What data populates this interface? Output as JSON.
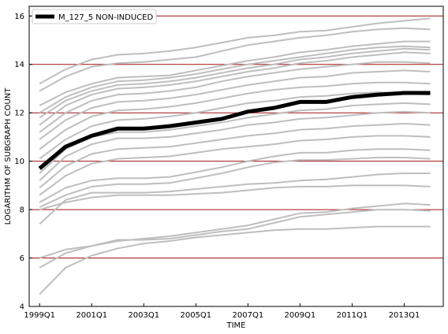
{
  "chart_data": {
    "type": "line",
    "title": "",
    "xlabel": "TIME",
    "ylabel": "LOGARITHM OF SUBGRAPH COUNT",
    "xlim": [
      1998.6,
      2014.5
    ],
    "ylim": [
      4,
      16.4
    ],
    "x_ticks": [
      {
        "value": 1999,
        "label": "1999Q1"
      },
      {
        "value": 2001,
        "label": "2001Q1"
      },
      {
        "value": 2003,
        "label": "2003Q1"
      },
      {
        "value": 2005,
        "label": "2005Q1"
      },
      {
        "value": 2007,
        "label": "2007Q1"
      },
      {
        "value": 2009,
        "label": "2009Q1"
      },
      {
        "value": 2011,
        "label": "2011Q1"
      },
      {
        "value": 2013,
        "label": "2013Q1"
      }
    ],
    "y_ticks": [
      4,
      6,
      8,
      10,
      12,
      14,
      16
    ],
    "grid": "horizontal",
    "legend_position": "top-left",
    "colors": {
      "highlight": "#000000",
      "background_series": "#bebebe",
      "grid": "#a01010"
    },
    "highlight_series": {
      "name": "M_127_5 NON-INDUCED",
      "x": [
        1999,
        2000,
        2001,
        2002,
        2003,
        2004,
        2005,
        2006,
        2007,
        2008,
        2009,
        2010,
        2011,
        2012,
        2013,
        2014
      ],
      "values": [
        9.7,
        10.6,
        11.05,
        11.35,
        11.35,
        11.45,
        11.6,
        11.75,
        12.05,
        12.2,
        12.45,
        12.45,
        12.65,
        12.75,
        12.82,
        12.82
      ]
    },
    "background_series": [
      {
        "x": [
          1999,
          2000,
          2001,
          2002,
          2003,
          2004,
          2005,
          2006,
          2007,
          2008,
          2009,
          2010,
          2011,
          2012,
          2013,
          2014
        ],
        "values": [
          13.2,
          13.8,
          14.2,
          14.4,
          14.45,
          14.55,
          14.7,
          14.9,
          15.1,
          15.2,
          15.35,
          15.4,
          15.55,
          15.7,
          15.8,
          15.9
        ]
      },
      {
        "x": [
          1999,
          2000,
          2001,
          2002,
          2003,
          2004,
          2005,
          2006,
          2007,
          2008,
          2009,
          2010,
          2011,
          2012,
          2013,
          2014
        ],
        "values": [
          12.9,
          13.5,
          13.9,
          14.05,
          14.1,
          14.2,
          14.3,
          14.55,
          14.8,
          14.95,
          15.1,
          15.2,
          15.35,
          15.45,
          15.5,
          15.45
        ]
      },
      {
        "x": [
          1999,
          2000,
          2001,
          2002,
          2003,
          2004,
          2005,
          2006,
          2007,
          2008,
          2009,
          2010,
          2011,
          2012,
          2013,
          2014
        ],
        "values": [
          12.3,
          12.85,
          13.2,
          13.45,
          13.5,
          13.55,
          13.75,
          13.95,
          14.15,
          14.3,
          14.5,
          14.6,
          14.75,
          14.85,
          14.95,
          14.95
        ]
      },
      {
        "x": [
          1999,
          2000,
          2001,
          2002,
          2003,
          2004,
          2005,
          2006,
          2007,
          2008,
          2009,
          2010,
          2011,
          2012,
          2013,
          2014
        ],
        "values": [
          12.0,
          12.65,
          13.05,
          13.3,
          13.35,
          13.45,
          13.6,
          13.8,
          14.0,
          14.15,
          14.3,
          14.45,
          14.6,
          14.7,
          14.75,
          14.7
        ]
      },
      {
        "x": [
          1999,
          2000,
          2001,
          2002,
          2003,
          2004,
          2005,
          2006,
          2007,
          2008,
          2009,
          2010,
          2011,
          2012,
          2013,
          2014
        ],
        "values": [
          11.8,
          12.5,
          12.9,
          13.15,
          13.2,
          13.3,
          13.45,
          13.65,
          13.85,
          14.0,
          14.2,
          14.3,
          14.45,
          14.55,
          14.65,
          14.6
        ]
      },
      {
        "x": [
          1999,
          2000,
          2001,
          2002,
          2003,
          2004,
          2005,
          2006,
          2007,
          2008,
          2009,
          2010,
          2011,
          2012,
          2013,
          2014
        ],
        "values": [
          11.5,
          12.3,
          12.75,
          13.0,
          13.05,
          13.15,
          13.3,
          13.5,
          13.7,
          13.85,
          14.05,
          14.15,
          14.3,
          14.4,
          14.5,
          14.45
        ]
      },
      {
        "x": [
          1999,
          2000,
          2001,
          2002,
          2003,
          2004,
          2005,
          2006,
          2007,
          2008,
          2009,
          2010,
          2011,
          2012,
          2013,
          2014
        ],
        "values": [
          11.2,
          12.0,
          12.5,
          12.75,
          12.8,
          12.9,
          13.05,
          13.3,
          13.5,
          13.65,
          13.8,
          13.9,
          14.0,
          14.1,
          14.1,
          14.05
        ]
      },
      {
        "x": [
          1999,
          2000,
          2001,
          2002,
          2003,
          2004,
          2005,
          2006,
          2007,
          2008,
          2009,
          2010,
          2011,
          2012,
          2013,
          2014
        ],
        "values": [
          10.9,
          11.7,
          12.2,
          12.45,
          12.5,
          12.6,
          12.75,
          12.95,
          13.15,
          13.3,
          13.45,
          13.5,
          13.65,
          13.7,
          13.75,
          13.7
        ]
      },
      {
        "x": [
          1999,
          2000,
          2001,
          2002,
          2003,
          2004,
          2005,
          2006,
          2007,
          2008,
          2009,
          2010,
          2011,
          2012,
          2013,
          2014
        ],
        "values": [
          10.5,
          11.3,
          11.85,
          12.1,
          12.15,
          12.25,
          12.4,
          12.6,
          12.8,
          12.95,
          13.05,
          13.1,
          13.2,
          13.25,
          13.25,
          13.2
        ]
      },
      {
        "x": [
          1999,
          2000,
          2001,
          2002,
          2003,
          2004,
          2005,
          2006,
          2007,
          2008,
          2009,
          2010,
          2011,
          2012,
          2013,
          2014
        ],
        "values": [
          10.1,
          10.9,
          11.45,
          11.7,
          11.75,
          11.85,
          12.0,
          12.2,
          12.4,
          12.5,
          12.65,
          12.7,
          12.8,
          12.85,
          12.8,
          12.75
        ]
      },
      {
        "x": [
          1999,
          2000,
          2001,
          2002,
          2003,
          2004,
          2005,
          2006,
          2007,
          2008,
          2009,
          2010,
          2011,
          2012,
          2013,
          2014
        ],
        "values": [
          9.5,
          10.5,
          11.0,
          11.2,
          11.2,
          11.3,
          11.45,
          11.6,
          11.8,
          11.95,
          12.1,
          12.15,
          12.3,
          12.35,
          12.4,
          12.35
        ]
      },
      {
        "x": [
          1999,
          2000,
          2001,
          2002,
          2003,
          2004,
          2005,
          2006,
          2007,
          2008,
          2009,
          2010,
          2011,
          2012,
          2013,
          2014
        ],
        "values": [
          9.2,
          10.2,
          10.7,
          10.95,
          10.95,
          11.0,
          11.15,
          11.3,
          11.5,
          11.6,
          11.75,
          11.8,
          11.9,
          12.0,
          12.05,
          12.0
        ]
      },
      {
        "x": [
          1999,
          2000,
          2001,
          2002,
          2003,
          2004,
          2005,
          2006,
          2007,
          2008,
          2009,
          2010,
          2011,
          2012,
          2013,
          2014
        ],
        "values": [
          8.9,
          9.8,
          10.3,
          10.5,
          10.55,
          10.6,
          10.75,
          10.9,
          11.05,
          11.15,
          11.3,
          11.35,
          11.45,
          11.5,
          11.55,
          11.5
        ]
      },
      {
        "x": [
          1999,
          2000,
          2001,
          2002,
          2003,
          2004,
          2005,
          2006,
          2007,
          2008,
          2009,
          2010,
          2011,
          2012,
          2013,
          2014
        ],
        "values": [
          8.6,
          9.4,
          9.9,
          10.1,
          10.15,
          10.2,
          10.35,
          10.5,
          10.6,
          10.7,
          10.85,
          10.9,
          11.0,
          11.05,
          11.05,
          11.0
        ]
      },
      {
        "x": [
          1999,
          2000,
          2001,
          2002,
          2003,
          2004,
          2005,
          2006,
          2007,
          2008,
          2009,
          2010,
          2011,
          2012,
          2013,
          2014
        ],
        "values": [
          8.3,
          8.9,
          9.2,
          9.3,
          9.3,
          9.35,
          9.55,
          9.75,
          10.0,
          10.2,
          10.35,
          10.35,
          10.45,
          10.5,
          10.5,
          10.45
        ]
      },
      {
        "x": [
          1999,
          2000,
          2001,
          2002,
          2003,
          2004,
          2005,
          2006,
          2007,
          2008,
          2009,
          2010,
          2011,
          2012,
          2013,
          2014
        ],
        "values": [
          8.1,
          8.6,
          8.95,
          9.05,
          9.05,
          9.1,
          9.3,
          9.5,
          9.75,
          9.95,
          10.05,
          10.05,
          10.1,
          10.15,
          10.15,
          10.1
        ]
      },
      {
        "x": [
          1999,
          2000,
          2001,
          2002,
          2003,
          2004,
          2005,
          2006,
          2007,
          2008,
          2009,
          2010,
          2011,
          2012,
          2013,
          2014
        ],
        "values": [
          7.4,
          8.4,
          8.7,
          8.7,
          8.7,
          8.75,
          8.85,
          8.95,
          9.05,
          9.1,
          9.2,
          9.25,
          9.35,
          9.45,
          9.5,
          9.5
        ]
      },
      {
        "x": [
          1999,
          2000,
          2001,
          2002,
          2003,
          2004,
          2005,
          2006,
          2007,
          2008,
          2009,
          2010,
          2011,
          2012,
          2013,
          2014
        ],
        "values": [
          8.0,
          8.3,
          8.5,
          8.6,
          8.6,
          8.6,
          8.65,
          8.7,
          8.8,
          8.9,
          8.95,
          8.95,
          9.0,
          9.0,
          9.0,
          8.95
        ]
      },
      {
        "x": [
          1999,
          2000,
          2001,
          2002,
          2003,
          2004,
          2005,
          2006,
          2007,
          2008,
          2009,
          2010,
          2011,
          2012,
          2013,
          2014
        ],
        "values": [
          6.0,
          6.35,
          6.5,
          6.7,
          6.8,
          6.9,
          7.05,
          7.2,
          7.35,
          7.6,
          7.85,
          7.9,
          8.05,
          8.15,
          8.25,
          8.2
        ]
      },
      {
        "x": [
          1999,
          2000,
          2001,
          2002,
          2003,
          2004,
          2005,
          2006,
          2007,
          2008,
          2009,
          2010,
          2011,
          2012,
          2013,
          2014
        ],
        "values": [
          5.6,
          6.2,
          6.5,
          6.75,
          6.75,
          6.8,
          6.95,
          7.1,
          7.2,
          7.45,
          7.7,
          7.8,
          7.9,
          8.0,
          8.0,
          7.95
        ]
      },
      {
        "x": [
          1999,
          2000,
          2001,
          2002,
          2003,
          2004,
          2005,
          2006,
          2007,
          2008,
          2009,
          2010,
          2011,
          2012,
          2013,
          2014
        ],
        "values": [
          4.5,
          5.6,
          6.1,
          6.4,
          6.6,
          6.7,
          6.85,
          6.95,
          7.05,
          7.15,
          7.2,
          7.2,
          7.25,
          7.3,
          7.3,
          7.3
        ]
      }
    ]
  }
}
